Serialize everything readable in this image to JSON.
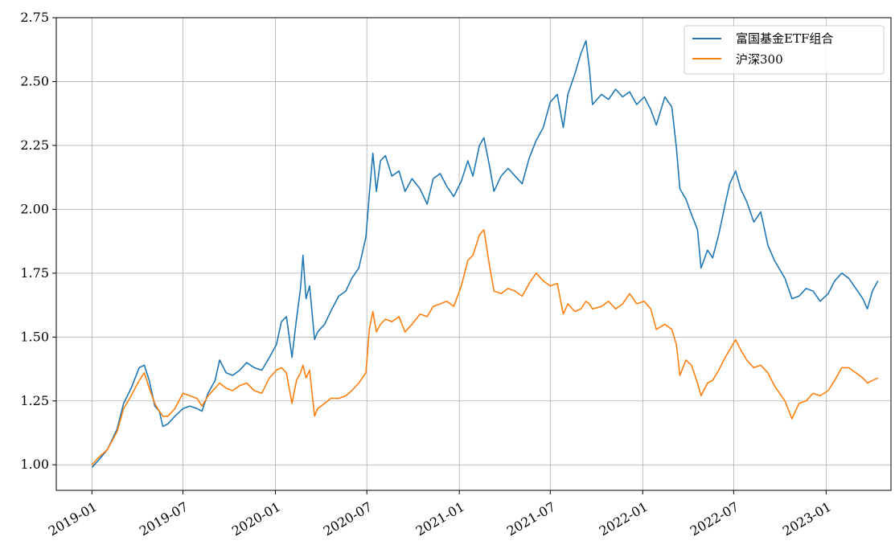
{
  "chart_data": {
    "type": "line",
    "title": "",
    "xlabel": "",
    "ylabel": "",
    "xlim": [
      "2018-10-22",
      "2023-05-10"
    ],
    "ylim": [
      0.9,
      2.75
    ],
    "x_ticks": [
      "2019-01",
      "2019-07",
      "2020-01",
      "2020-07",
      "2021-01",
      "2021-07",
      "2022-01",
      "2022-07",
      "2023-01"
    ],
    "y_ticks": [
      "1.00",
      "1.25",
      "1.50",
      "1.75",
      "2.00",
      "2.25",
      "2.50",
      "2.75"
    ],
    "grid": true,
    "legend_position": "top-right",
    "series": [
      {
        "name": "富国基金ETF组合",
        "color": "#1f77b4",
        "points": [
          [
            "2019-01-01",
            0.99
          ],
          [
            "2019-01-15",
            1.02
          ],
          [
            "2019-02-01",
            1.06
          ],
          [
            "2019-02-20",
            1.14
          ],
          [
            "2019-03-05",
            1.24
          ],
          [
            "2019-03-20",
            1.3
          ],
          [
            "2019-04-05",
            1.38
          ],
          [
            "2019-04-15",
            1.39
          ],
          [
            "2019-04-25",
            1.33
          ],
          [
            "2019-05-06",
            1.23
          ],
          [
            "2019-05-15",
            1.21
          ],
          [
            "2019-05-22",
            1.15
          ],
          [
            "2019-06-01",
            1.16
          ],
          [
            "2019-06-15",
            1.19
          ],
          [
            "2019-07-01",
            1.22
          ],
          [
            "2019-07-15",
            1.23
          ],
          [
            "2019-07-29",
            1.22
          ],
          [
            "2019-08-08",
            1.21
          ],
          [
            "2019-08-20",
            1.28
          ],
          [
            "2019-09-03",
            1.33
          ],
          [
            "2019-09-12",
            1.41
          ],
          [
            "2019-09-25",
            1.36
          ],
          [
            "2019-10-08",
            1.35
          ],
          [
            "2019-10-22",
            1.37
          ],
          [
            "2019-11-05",
            1.4
          ],
          [
            "2019-11-20",
            1.38
          ],
          [
            "2019-12-05",
            1.37
          ],
          [
            "2019-12-20",
            1.42
          ],
          [
            "2020-01-03",
            1.47
          ],
          [
            "2020-01-13",
            1.56
          ],
          [
            "2020-01-23",
            1.58
          ],
          [
            "2020-02-03",
            1.42
          ],
          [
            "2020-02-12",
            1.57
          ],
          [
            "2020-02-20",
            1.69
          ],
          [
            "2020-02-25",
            1.82
          ],
          [
            "2020-03-02",
            1.65
          ],
          [
            "2020-03-09",
            1.7
          ],
          [
            "2020-03-19",
            1.49
          ],
          [
            "2020-03-25",
            1.52
          ],
          [
            "2020-04-08",
            1.55
          ],
          [
            "2020-04-20",
            1.6
          ],
          [
            "2020-05-06",
            1.66
          ],
          [
            "2020-05-20",
            1.68
          ],
          [
            "2020-06-01",
            1.73
          ],
          [
            "2020-06-15",
            1.77
          ],
          [
            "2020-06-29",
            1.89
          ],
          [
            "2020-07-06",
            2.06
          ],
          [
            "2020-07-13",
            2.22
          ],
          [
            "2020-07-20",
            2.07
          ],
          [
            "2020-07-28",
            2.19
          ],
          [
            "2020-08-07",
            2.21
          ],
          [
            "2020-08-20",
            2.13
          ],
          [
            "2020-09-03",
            2.15
          ],
          [
            "2020-09-15",
            2.07
          ],
          [
            "2020-09-29",
            2.12
          ],
          [
            "2020-10-15",
            2.08
          ],
          [
            "2020-10-29",
            2.02
          ],
          [
            "2020-11-10",
            2.12
          ],
          [
            "2020-11-24",
            2.14
          ],
          [
            "2020-12-07",
            2.09
          ],
          [
            "2020-12-21",
            2.05
          ],
          [
            "2021-01-05",
            2.11
          ],
          [
            "2021-01-18",
            2.19
          ],
          [
            "2021-01-28",
            2.13
          ],
          [
            "2021-02-10",
            2.25
          ],
          [
            "2021-02-19",
            2.28
          ],
          [
            "2021-03-02",
            2.17
          ],
          [
            "2021-03-11",
            2.07
          ],
          [
            "2021-03-25",
            2.13
          ],
          [
            "2021-04-08",
            2.16
          ],
          [
            "2021-04-22",
            2.13
          ],
          [
            "2021-05-06",
            2.1
          ],
          [
            "2021-05-20",
            2.2
          ],
          [
            "2021-06-03",
            2.27
          ],
          [
            "2021-06-17",
            2.32
          ],
          [
            "2021-07-01",
            2.42
          ],
          [
            "2021-07-15",
            2.45
          ],
          [
            "2021-07-27",
            2.32
          ],
          [
            "2021-08-05",
            2.45
          ],
          [
            "2021-08-19",
            2.53
          ],
          [
            "2021-08-31",
            2.61
          ],
          [
            "2021-09-10",
            2.66
          ],
          [
            "2021-09-17",
            2.55
          ],
          [
            "2021-09-23",
            2.41
          ],
          [
            "2021-10-11",
            2.45
          ],
          [
            "2021-10-25",
            2.43
          ],
          [
            "2021-11-08",
            2.47
          ],
          [
            "2021-11-22",
            2.44
          ],
          [
            "2021-12-06",
            2.46
          ],
          [
            "2021-12-20",
            2.41
          ],
          [
            "2022-01-04",
            2.44
          ],
          [
            "2022-01-17",
            2.39
          ],
          [
            "2022-01-28",
            2.33
          ],
          [
            "2022-02-14",
            2.44
          ],
          [
            "2022-02-28",
            2.4
          ],
          [
            "2022-03-09",
            2.24
          ],
          [
            "2022-03-16",
            2.08
          ],
          [
            "2022-03-28",
            2.04
          ],
          [
            "2022-04-08",
            1.98
          ],
          [
            "2022-04-20",
            1.92
          ],
          [
            "2022-04-27",
            1.77
          ],
          [
            "2022-05-10",
            1.84
          ],
          [
            "2022-05-20",
            1.81
          ],
          [
            "2022-06-01",
            1.9
          ],
          [
            "2022-06-14",
            2.02
          ],
          [
            "2022-06-23",
            2.1
          ],
          [
            "2022-07-05",
            2.15
          ],
          [
            "2022-07-15",
            2.08
          ],
          [
            "2022-07-27",
            2.03
          ],
          [
            "2022-08-10",
            1.95
          ],
          [
            "2022-08-24",
            1.99
          ],
          [
            "2022-09-07",
            1.86
          ],
          [
            "2022-09-20",
            1.8
          ],
          [
            "2022-10-11",
            1.73
          ],
          [
            "2022-10-25",
            1.65
          ],
          [
            "2022-11-08",
            1.66
          ],
          [
            "2022-11-22",
            1.69
          ],
          [
            "2022-12-06",
            1.68
          ],
          [
            "2022-12-20",
            1.64
          ],
          [
            "2023-01-05",
            1.67
          ],
          [
            "2023-01-18",
            1.72
          ],
          [
            "2023-02-01",
            1.75
          ],
          [
            "2023-02-15",
            1.73
          ],
          [
            "2023-03-01",
            1.69
          ],
          [
            "2023-03-15",
            1.65
          ],
          [
            "2023-03-24",
            1.61
          ],
          [
            "2023-04-03",
            1.68
          ],
          [
            "2023-04-14",
            1.72
          ]
        ]
      },
      {
        "name": "沪深300",
        "color": "#ff7f0e",
        "points": [
          [
            "2019-01-01",
            1.0
          ],
          [
            "2019-01-15",
            1.03
          ],
          [
            "2019-02-01",
            1.06
          ],
          [
            "2019-02-20",
            1.13
          ],
          [
            "2019-03-05",
            1.22
          ],
          [
            "2019-03-20",
            1.27
          ],
          [
            "2019-04-05",
            1.33
          ],
          [
            "2019-04-15",
            1.36
          ],
          [
            "2019-04-25",
            1.3
          ],
          [
            "2019-05-06",
            1.24
          ],
          [
            "2019-05-15",
            1.21
          ],
          [
            "2019-05-22",
            1.19
          ],
          [
            "2019-06-01",
            1.19
          ],
          [
            "2019-06-15",
            1.22
          ],
          [
            "2019-07-01",
            1.28
          ],
          [
            "2019-07-15",
            1.27
          ],
          [
            "2019-07-29",
            1.26
          ],
          [
            "2019-08-08",
            1.23
          ],
          [
            "2019-08-20",
            1.27
          ],
          [
            "2019-09-03",
            1.3
          ],
          [
            "2019-09-12",
            1.32
          ],
          [
            "2019-09-25",
            1.3
          ],
          [
            "2019-10-08",
            1.29
          ],
          [
            "2019-10-22",
            1.31
          ],
          [
            "2019-11-05",
            1.32
          ],
          [
            "2019-11-20",
            1.29
          ],
          [
            "2019-12-05",
            1.28
          ],
          [
            "2019-12-20",
            1.34
          ],
          [
            "2020-01-03",
            1.37
          ],
          [
            "2020-01-13",
            1.38
          ],
          [
            "2020-01-23",
            1.36
          ],
          [
            "2020-02-03",
            1.24
          ],
          [
            "2020-02-12",
            1.33
          ],
          [
            "2020-02-20",
            1.36
          ],
          [
            "2020-02-25",
            1.39
          ],
          [
            "2020-03-02",
            1.34
          ],
          [
            "2020-03-09",
            1.37
          ],
          [
            "2020-03-19",
            1.19
          ],
          [
            "2020-03-25",
            1.22
          ],
          [
            "2020-04-08",
            1.24
          ],
          [
            "2020-04-20",
            1.26
          ],
          [
            "2020-05-06",
            1.26
          ],
          [
            "2020-05-20",
            1.27
          ],
          [
            "2020-06-01",
            1.29
          ],
          [
            "2020-06-15",
            1.32
          ],
          [
            "2020-06-29",
            1.36
          ],
          [
            "2020-07-06",
            1.53
          ],
          [
            "2020-07-13",
            1.6
          ],
          [
            "2020-07-20",
            1.52
          ],
          [
            "2020-07-28",
            1.55
          ],
          [
            "2020-08-07",
            1.57
          ],
          [
            "2020-08-20",
            1.56
          ],
          [
            "2020-09-03",
            1.58
          ],
          [
            "2020-09-15",
            1.52
          ],
          [
            "2020-09-29",
            1.55
          ],
          [
            "2020-10-15",
            1.59
          ],
          [
            "2020-10-29",
            1.58
          ],
          [
            "2020-11-10",
            1.62
          ],
          [
            "2020-11-24",
            1.63
          ],
          [
            "2020-12-07",
            1.64
          ],
          [
            "2020-12-21",
            1.62
          ],
          [
            "2021-01-05",
            1.7
          ],
          [
            "2021-01-18",
            1.8
          ],
          [
            "2021-01-28",
            1.82
          ],
          [
            "2021-02-10",
            1.9
          ],
          [
            "2021-02-19",
            1.92
          ],
          [
            "2021-03-02",
            1.78
          ],
          [
            "2021-03-11",
            1.68
          ],
          [
            "2021-03-25",
            1.67
          ],
          [
            "2021-04-08",
            1.69
          ],
          [
            "2021-04-22",
            1.68
          ],
          [
            "2021-05-06",
            1.66
          ],
          [
            "2021-05-20",
            1.71
          ],
          [
            "2021-06-03",
            1.75
          ],
          [
            "2021-06-17",
            1.72
          ],
          [
            "2021-07-01",
            1.7
          ],
          [
            "2021-07-15",
            1.71
          ],
          [
            "2021-07-27",
            1.59
          ],
          [
            "2021-08-05",
            1.63
          ],
          [
            "2021-08-19",
            1.6
          ],
          [
            "2021-08-31",
            1.61
          ],
          [
            "2021-09-10",
            1.64
          ],
          [
            "2021-09-17",
            1.63
          ],
          [
            "2021-09-23",
            1.61
          ],
          [
            "2021-10-11",
            1.62
          ],
          [
            "2021-10-25",
            1.64
          ],
          [
            "2021-11-08",
            1.61
          ],
          [
            "2021-11-22",
            1.63
          ],
          [
            "2021-12-06",
            1.67
          ],
          [
            "2021-12-20",
            1.63
          ],
          [
            "2022-01-04",
            1.64
          ],
          [
            "2022-01-17",
            1.61
          ],
          [
            "2022-01-28",
            1.53
          ],
          [
            "2022-02-14",
            1.55
          ],
          [
            "2022-02-28",
            1.53
          ],
          [
            "2022-03-09",
            1.47
          ],
          [
            "2022-03-16",
            1.35
          ],
          [
            "2022-03-28",
            1.41
          ],
          [
            "2022-04-08",
            1.39
          ],
          [
            "2022-04-20",
            1.32
          ],
          [
            "2022-04-27",
            1.27
          ],
          [
            "2022-05-10",
            1.32
          ],
          [
            "2022-05-20",
            1.33
          ],
          [
            "2022-06-01",
            1.37
          ],
          [
            "2022-06-14",
            1.42
          ],
          [
            "2022-06-23",
            1.45
          ],
          [
            "2022-07-05",
            1.49
          ],
          [
            "2022-07-15",
            1.45
          ],
          [
            "2022-07-27",
            1.41
          ],
          [
            "2022-08-10",
            1.38
          ],
          [
            "2022-08-24",
            1.39
          ],
          [
            "2022-09-07",
            1.36
          ],
          [
            "2022-09-20",
            1.31
          ],
          [
            "2022-10-11",
            1.25
          ],
          [
            "2022-10-25",
            1.18
          ],
          [
            "2022-11-08",
            1.24
          ],
          [
            "2022-11-22",
            1.25
          ],
          [
            "2022-12-06",
            1.28
          ],
          [
            "2022-12-20",
            1.27
          ],
          [
            "2023-01-05",
            1.29
          ],
          [
            "2023-01-18",
            1.33
          ],
          [
            "2023-02-01",
            1.38
          ],
          [
            "2023-02-15",
            1.38
          ],
          [
            "2023-03-01",
            1.36
          ],
          [
            "2023-03-15",
            1.34
          ],
          [
            "2023-03-24",
            1.32
          ],
          [
            "2023-04-03",
            1.33
          ],
          [
            "2023-04-14",
            1.34
          ]
        ]
      }
    ]
  }
}
